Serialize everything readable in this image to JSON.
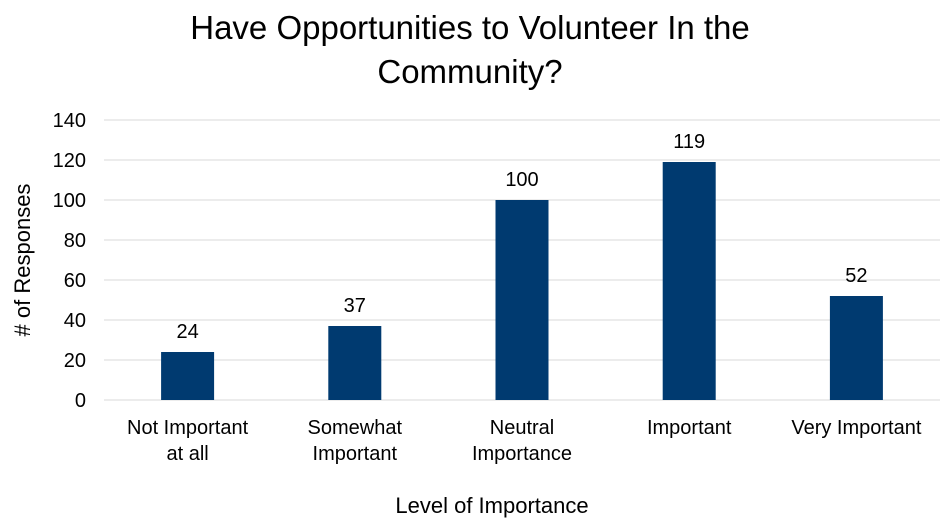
{
  "chart_data": {
    "type": "bar",
    "title_lines": [
      "Have Opportunities to Volunteer In the",
      "Community?"
    ],
    "xlabel": "Level of Importance",
    "ylabel": "# of Responses",
    "categories": [
      [
        "Not Important",
        "at all"
      ],
      [
        "Somewhat",
        "Important"
      ],
      [
        "Neutral",
        "Importance"
      ],
      [
        "Important"
      ],
      [
        "Very Important"
      ]
    ],
    "values": [
      24,
      37,
      100,
      119,
      52
    ],
    "data_labels": [
      "24",
      "37",
      "100",
      "119",
      "52"
    ],
    "ylim": [
      0,
      140
    ],
    "yticks": [
      0,
      20,
      40,
      60,
      80,
      100,
      120,
      140
    ],
    "ytick_labels": [
      "0",
      "20",
      "40",
      "60",
      "80",
      "100",
      "120",
      "140"
    ],
    "grid": true,
    "bar_color": "#003a70"
  }
}
